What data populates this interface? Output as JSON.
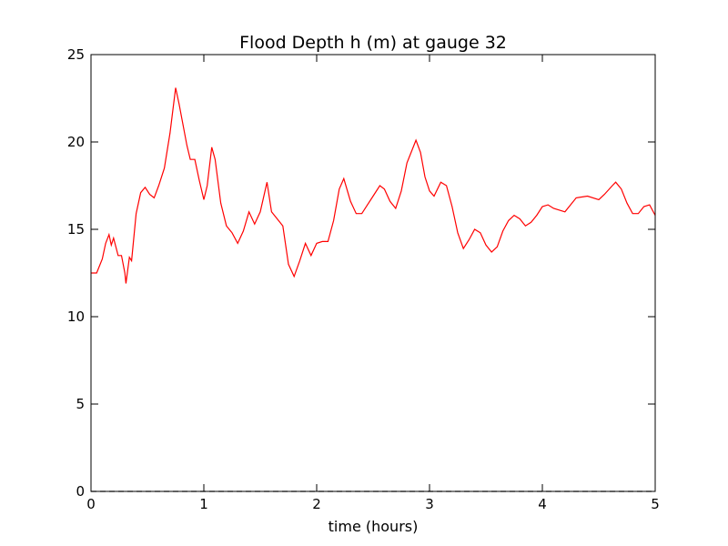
{
  "chart_data": {
    "type": "line",
    "title": "Flood Depth h (m) at gauge 32",
    "xlabel": "time (hours)",
    "xlim": [
      0,
      5
    ],
    "xticks": [
      0,
      1,
      2,
      3,
      4,
      5
    ],
    "ylim": [
      0,
      25
    ],
    "yticks": [
      0,
      5,
      10,
      15,
      20,
      25
    ],
    "series": [
      {
        "color": "#ff0000",
        "style": "solid",
        "x": [
          0,
          0.05,
          0.1,
          0.13,
          0.16,
          0.18,
          0.2,
          0.24,
          0.27,
          0.3,
          0.31,
          0.34,
          0.36,
          0.4,
          0.44,
          0.48,
          0.52,
          0.56,
          0.6,
          0.65,
          0.7,
          0.75,
          0.78,
          0.85,
          0.88,
          0.92,
          0.96,
          1.0,
          1.03,
          1.07,
          1.1,
          1.15,
          1.2,
          1.25,
          1.3,
          1.35,
          1.4,
          1.45,
          1.5,
          1.56,
          1.6,
          1.65,
          1.7,
          1.75,
          1.8,
          1.85,
          1.9,
          1.95,
          2.0,
          2.05,
          2.1,
          2.15,
          2.2,
          2.24,
          2.3,
          2.35,
          2.4,
          2.45,
          2.5,
          2.56,
          2.6,
          2.65,
          2.7,
          2.75,
          2.8,
          2.88,
          2.92,
          2.96,
          3.0,
          3.04,
          3.1,
          3.15,
          3.2,
          3.25,
          3.3,
          3.35,
          3.4,
          3.45,
          3.5,
          3.55,
          3.6,
          3.65,
          3.7,
          3.75,
          3.8,
          3.85,
          3.9,
          3.95,
          4.0,
          4.05,
          4.1,
          4.2,
          4.3,
          4.4,
          4.5,
          4.55,
          4.62,
          4.65,
          4.7,
          4.75,
          4.8,
          4.85,
          4.9,
          4.95,
          5.0
        ],
        "values": [
          12.5,
          12.5,
          13.3,
          14.2,
          14.7,
          14.1,
          14.5,
          13.5,
          13.5,
          12.5,
          11.9,
          13.4,
          13.2,
          15.9,
          17.1,
          17.4,
          17.0,
          16.8,
          17.5,
          18.5,
          20.5,
          23.1,
          22.2,
          19.8,
          19.0,
          19.0,
          17.8,
          16.7,
          17.5,
          19.7,
          19.0,
          16.5,
          15.2,
          14.8,
          14.2,
          14.9,
          16.0,
          15.3,
          16.0,
          17.7,
          16.0,
          15.6,
          15.2,
          13.0,
          12.3,
          13.2,
          14.2,
          13.5,
          14.2,
          14.3,
          14.3,
          15.5,
          17.3,
          17.9,
          16.6,
          15.9,
          15.9,
          16.4,
          16.9,
          17.5,
          17.3,
          16.6,
          16.2,
          17.2,
          18.8,
          20.1,
          19.4,
          18.0,
          17.2,
          16.9,
          17.7,
          17.5,
          16.3,
          14.8,
          13.9,
          14.4,
          15.0,
          14.8,
          14.1,
          13.7,
          14.0,
          14.9,
          15.5,
          15.8,
          15.6,
          15.2,
          15.4,
          15.8,
          16.3,
          16.4,
          16.2,
          16.0,
          16.8,
          16.9,
          16.7,
          17.0,
          17.5,
          17.7,
          17.3,
          16.5,
          15.9,
          15.9,
          16.3,
          16.4,
          15.8
        ]
      },
      {
        "color": "#000000",
        "style": "dashed",
        "x": [
          0,
          5
        ],
        "values": [
          0,
          0
        ]
      }
    ]
  }
}
